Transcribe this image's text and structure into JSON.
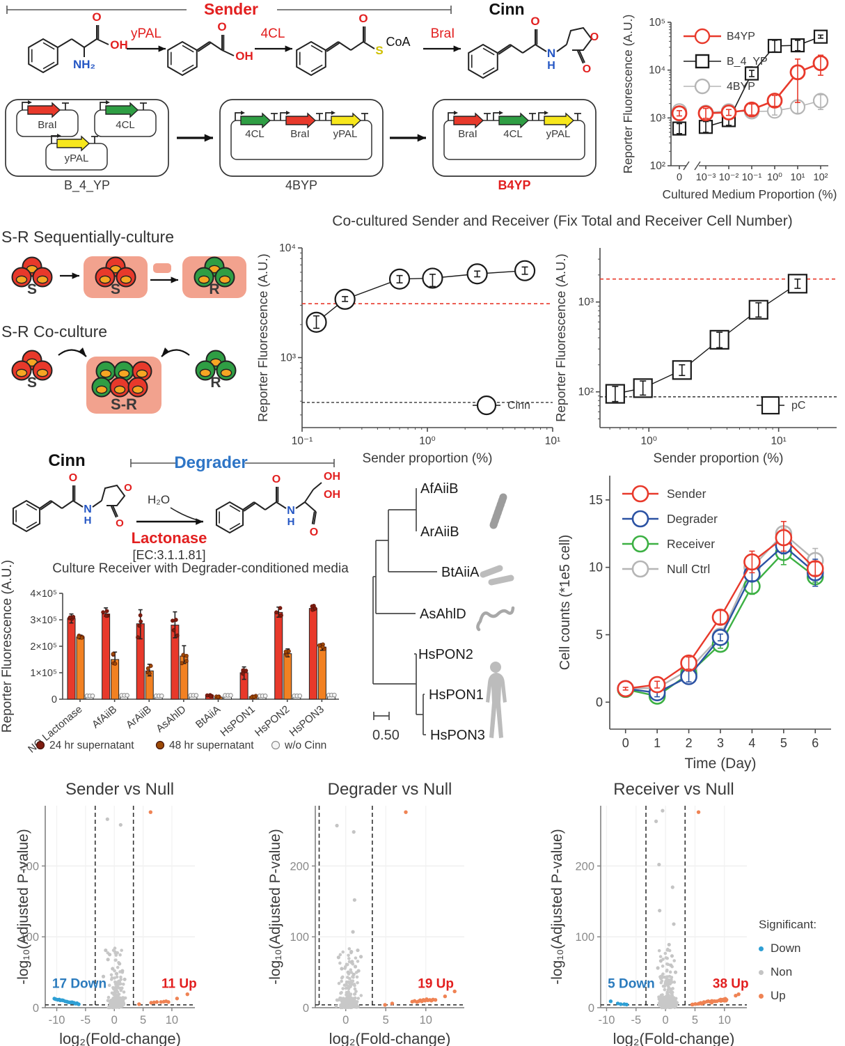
{
  "pathway": {
    "sender_label": "Sender",
    "cinn_label": "Cinn",
    "enzyme_labels": [
      "yPAL",
      "4CL",
      "BraI"
    ],
    "phe": {
      "o": "O",
      "oh": "OH",
      "nh2": "NH₂"
    },
    "ca": {
      "o": "O",
      "oh": "OH"
    },
    "coa": {
      "o": "O",
      "s": "S",
      "coa": "CoA"
    },
    "cinn_mol": {
      "o1": "O",
      "n": "N",
      "h": "H",
      "o_ring": "O",
      "o2": "O"
    }
  },
  "plasmids": {
    "cells": [
      {
        "label": "B_4_YP",
        "highlight": false,
        "layout": "separate",
        "genes": [
          "BraI",
          "4CL",
          "yPAL"
        ]
      },
      {
        "label": "4BYP",
        "highlight": false,
        "layout": "operon",
        "genes": [
          "4CL",
          "BraI",
          "yPAL"
        ]
      },
      {
        "label": "B4YP",
        "highlight": true,
        "layout": "operon",
        "genes": [
          "BraI",
          "4CL",
          "yPAL"
        ]
      }
    ],
    "gene_colors": {
      "BraI": "#e8392b",
      "4CL": "#2f9e44",
      "yPAL": "#f7e71c"
    },
    "highlight_color": "#e21f1f"
  },
  "coculture": {
    "title": "Co-cultured Sender and Receiver (Fix Total and Receiver Cell Number)",
    "seq_label": "S-R Sequentially-culture",
    "co_label": "S-R Co-culture",
    "s": "S",
    "r": "R",
    "sr": "S-R",
    "pink": "#f2a28e",
    "cell_red": "#e8392b",
    "cell_green": "#2f9e44",
    "yolk": "#f6a623"
  },
  "reaction": {
    "cinn": "Cinn",
    "degrader": "Degrader",
    "h2o": "H₂O",
    "enzyme": "Lactonase",
    "ec": "[EC:3.1.1.81]",
    "atoms": {
      "o": "O",
      "n": "N",
      "h": "H",
      "oh": "OH"
    },
    "degrader_color": "#2e75c6",
    "enzyme_color": "#e21f1f"
  },
  "volcano_legend": {
    "header": "Significant:",
    "items": [
      {
        "label": "Down",
        "color": "#2e9fd4"
      },
      {
        "label": "Non",
        "color": "#c4c4c4"
      },
      {
        "label": "Up",
        "color": "#ef8354"
      }
    ]
  },
  "chart_data": [
    {
      "id": "medium",
      "type": "line",
      "ylabel": "Reporter Fluorescence (A.U.)",
      "xlabel": "Cultured Medium Proportion (%)",
      "x_tick_labels": [
        "0",
        "10⁻³",
        "10⁻²",
        "10⁻¹",
        "10⁰",
        "10¹",
        "10²"
      ],
      "y_tick_labels": [
        "10²",
        "10³",
        "10⁴",
        "10⁵"
      ],
      "ylim": [
        100,
        100000
      ],
      "axis_break": true,
      "series": [
        {
          "name": "4BYP",
          "color": "#b5b5b5",
          "marker": "circle",
          "values": [
            1400,
            1300,
            1400,
            1350,
            1400,
            1700,
            2300
          ],
          "err_lo": [
            1200,
            1050,
            1200,
            1050,
            1150,
            1250,
            1500
          ],
          "err_hi": [
            1650,
            1600,
            1650,
            1750,
            1750,
            2300,
            3050
          ]
        },
        {
          "name": "B_4_YP",
          "color": "#1a1a1a",
          "marker": "square",
          "values": [
            600,
            650,
            900,
            8500,
            32000,
            33000,
            50000
          ],
          "err_lo": [
            470,
            500,
            700,
            7300,
            24000,
            25500,
            46500
          ],
          "err_hi": [
            760,
            840,
            1150,
            9900,
            42000,
            42000,
            54000
          ]
        },
        {
          "name": "B4YP",
          "color": "#e8392b",
          "marker": "circle",
          "values": [
            1250,
            1250,
            1300,
            1500,
            2300,
            9000,
            14000
          ],
          "err_lo": [
            1100,
            980,
            1130,
            1150,
            1750,
            2100,
            7800
          ],
          "err_hi": [
            1420,
            1580,
            1500,
            1950,
            2950,
            17000,
            20500
          ]
        }
      ],
      "legend_order": [
        "B4YP",
        "B_4_YP",
        "4BYP"
      ]
    },
    {
      "id": "cinn",
      "type": "line-loglog",
      "ylabel": "Reporter Fluorescence (A.U.)",
      "xlabel": "Sender proportion (%)",
      "x": [
        0.13,
        0.22,
        0.6,
        1.1,
        2.5,
        6
      ],
      "y": [
        2100,
        3400,
        5200,
        5300,
        5800,
        6200
      ],
      "err_lo": [
        1850,
        3250,
        4800,
        4450,
        5450,
        5750
      ],
      "err_hi": [
        2400,
        3600,
        5600,
        5750,
        6150,
        6700
      ],
      "xlim": [
        0.1,
        10
      ],
      "ylim": [
        230,
        10000
      ],
      "x_tick_labels": [
        "10⁻¹",
        "10⁰",
        "10¹"
      ],
      "x_tick_vals": [
        0.1,
        1,
        10
      ],
      "y_tick_labels": [
        "10³",
        "10⁴"
      ],
      "y_tick_vals": [
        1000,
        10000
      ],
      "hline_red": 3100,
      "hline_black": 390,
      "legend": "Cinn",
      "marker": "circle",
      "color": "#1a1a1a"
    },
    {
      "id": "pc",
      "type": "line-loglog",
      "ylabel": "Reporter Fluorescence (A.U.)",
      "xlabel": "Sender proportion (%)",
      "x": [
        0.55,
        0.9,
        1.8,
        3.5,
        7,
        14
      ],
      "y": [
        95,
        110,
        175,
        380,
        820,
        1600
      ],
      "err_lo": [
        78,
        92,
        152,
        310,
        680,
        1420
      ],
      "err_hi": [
        115,
        132,
        200,
        460,
        980,
        1800
      ],
      "xlim": [
        0.42,
        28
      ],
      "ylim": [
        40,
        4000
      ],
      "x_tick_labels": [
        "10⁰",
        "10¹"
      ],
      "x_tick_vals": [
        1,
        10
      ],
      "y_tick_labels": [
        "10²",
        "10³"
      ],
      "y_tick_vals": [
        100,
        1000
      ],
      "hline_red": 1800,
      "hline_black": 88,
      "legend": "pC",
      "marker": "square",
      "color": "#1a1a1a"
    },
    {
      "id": "bars",
      "type": "bar",
      "title": "Culture Receiver with Degrader-conditioned media",
      "ylabel": "Reporter Fluorescence (A.U.)",
      "categories": [
        "NO Lactonase",
        "AfAiiB",
        "ArAiiB",
        "AsAhlD",
        "BtAiiA",
        "HsPON1",
        "HsPON2",
        "HsPON3"
      ],
      "y_tick_labels": [
        "0",
        "1×10⁵",
        "2×10⁵",
        "3×10⁵",
        "4×10⁵"
      ],
      "ylim": [
        0,
        400000
      ],
      "series": [
        {
          "name": "24 hr supernatant",
          "color": "#e8392b",
          "dot_color": "#7e1c10",
          "values": [
            305000,
            322000,
            285000,
            280000,
            13000,
            100000,
            328000,
            343000
          ],
          "err_lo": [
            288000,
            314000,
            228000,
            232000,
            10000,
            75000,
            310000,
            335000
          ],
          "err_hi": [
            322000,
            345000,
            338000,
            330000,
            16000,
            122000,
            348000,
            355000
          ]
        },
        {
          "name": "48 hr supernatant",
          "color": "#f28122",
          "dot_color": "#9c4a05",
          "values": [
            235000,
            150000,
            107000,
            163000,
            8000,
            10000,
            172000,
            197000
          ],
          "err_lo": [
            228000,
            133000,
            88000,
            135000,
            6000,
            7000,
            160000,
            185000
          ],
          "err_hi": [
            242000,
            178000,
            132000,
            202000,
            10000,
            13000,
            190000,
            210000
          ]
        },
        {
          "name": "w/o Cinn",
          "color": "#f2f2f2",
          "dot_color": "#9a9a9a",
          "values": [
            10000,
            12000,
            10000,
            12000,
            12000,
            10000,
            10000,
            13000
          ],
          "err_lo": null,
          "err_hi": null
        }
      ]
    },
    {
      "id": "tree",
      "type": "tree",
      "taxa": [
        "AfAiiB",
        "ArAiiB",
        "BtAiiA",
        "AsAhlD",
        "HsPON2",
        "HsPON1",
        "HsPON3"
      ],
      "scale_label": "0.50",
      "icons": [
        "filamentous-bacterium",
        "rod-bacteria",
        "nematode",
        "human"
      ]
    },
    {
      "id": "growth",
      "type": "line",
      "ylabel": "Cell counts (*1e5 cell)",
      "xlabel": "Time (Day)",
      "x": [
        0,
        1,
        2,
        3,
        4,
        5,
        6
      ],
      "x_tick_labels": [
        "0",
        "1",
        "2",
        "3",
        "4",
        "5",
        "6"
      ],
      "y_tick_labels": [
        "0",
        "5",
        "10",
        "15"
      ],
      "y_tick_vals": [
        0,
        5,
        10,
        15
      ],
      "series": [
        {
          "name": "Null Ctrl",
          "color": "#b5b5b5",
          "values": [
            1.0,
            1.05,
            2.4,
            4.9,
            10.0,
            12.5,
            10.5
          ],
          "err_lo": [
            0.9,
            0.85,
            2.1,
            4.6,
            9.5,
            12.0,
            9.7
          ],
          "err_hi": [
            1.1,
            1.25,
            2.7,
            5.2,
            10.5,
            12.9,
            11.4
          ]
        },
        {
          "name": "Receiver",
          "color": "#3cb043",
          "values": [
            0.95,
            0.45,
            2.1,
            4.3,
            8.6,
            11.1,
            9.3
          ],
          "err_lo": [
            0.85,
            0.2,
            1.8,
            4.0,
            8.0,
            10.2,
            8.9
          ],
          "err_hi": [
            1.05,
            0.7,
            2.4,
            4.6,
            9.2,
            11.9,
            9.7
          ]
        },
        {
          "name": "Degrader",
          "color": "#2b52a3",
          "values": [
            1.0,
            0.7,
            1.9,
            4.8,
            9.5,
            11.6,
            9.6
          ],
          "err_lo": [
            0.9,
            0.4,
            1.5,
            4.55,
            9.0,
            11.0,
            8.6
          ],
          "err_hi": [
            1.1,
            1.0,
            2.3,
            5.05,
            10.0,
            12.2,
            10.6
          ]
        },
        {
          "name": "Sender",
          "color": "#e8392b",
          "values": [
            1.0,
            1.3,
            2.9,
            6.3,
            10.4,
            12.2,
            9.9
          ],
          "err_lo": [
            0.9,
            1.05,
            2.45,
            5.8,
            9.6,
            11.2,
            9.4
          ],
          "err_hi": [
            1.1,
            1.55,
            3.35,
            6.8,
            11.2,
            13.4,
            10.4
          ]
        }
      ],
      "legend_order": [
        "Sender",
        "Degrader",
        "Receiver",
        "Null Ctrl"
      ]
    },
    {
      "id": "volcano_sender",
      "type": "scatter",
      "title": "Sender vs Null",
      "ylabel": "-log₁₀(Adjusted P-value)",
      "xlabel": "log₂(Fold-change)",
      "y_ticks": [
        0,
        100,
        200
      ],
      "x_ticks": [
        -10,
        -5,
        0,
        5,
        10
      ],
      "xlim": [
        -12,
        14
      ],
      "ylim": [
        0,
        285
      ],
      "vline": 3.32,
      "hline": 4,
      "down_label": "17 Down",
      "up_label": "11 Up",
      "n_down": 17,
      "n_up": 11,
      "grey_n": 300,
      "seed": 7,
      "down_cluster": {
        "x0": -10.4,
        "x1": -6.2,
        "ytop": 12.5,
        "step": 0.45
      },
      "up_points": [
        [
          4.3,
          5
        ],
        [
          6.4,
          7
        ],
        [
          6.9,
          7.5
        ],
        [
          7.4,
          8
        ],
        [
          8.1,
          8
        ],
        [
          8.6,
          8.5
        ],
        [
          9.0,
          9
        ],
        [
          9.4,
          8
        ],
        [
          10.9,
          13
        ],
        [
          12.7,
          19
        ],
        [
          6.3,
          276
        ]
      ],
      "grey_outliers": [
        [
          -1.2,
          266
        ],
        [
          1.1,
          258
        ],
        [
          -1.5,
          81
        ],
        [
          -0.8,
          75
        ],
        [
          -1.1,
          68
        ],
        [
          0.9,
          62
        ],
        [
          -0.3,
          55
        ],
        [
          1.4,
          52
        ],
        [
          0.4,
          48
        ],
        [
          -1.9,
          44
        ],
        [
          1.8,
          40
        ]
      ]
    },
    {
      "id": "volcano_degrader",
      "type": "scatter",
      "title": "Degrader vs Null",
      "ylabel": "-log₁₀(Adjusted P-value)",
      "xlabel": "log₂(Fold-change)",
      "y_ticks": [
        0,
        100,
        200
      ],
      "x_ticks": [
        0,
        5,
        10
      ],
      "xlim": [
        -3.8,
        14.8
      ],
      "ylim": [
        0,
        285
      ],
      "vline": 3.32,
      "hline": 4,
      "up_label": "19 Up",
      "grey_n": 280,
      "seed": 11,
      "up_points": [
        [
          4.9,
          4
        ],
        [
          5.8,
          6
        ],
        [
          8.3,
          8.5
        ],
        [
          8.6,
          9.5
        ],
        [
          8.9,
          8
        ],
        [
          9.1,
          9
        ],
        [
          9.3,
          10.5
        ],
        [
          9.5,
          9
        ],
        [
          9.7,
          11
        ],
        [
          9.9,
          10
        ],
        [
          10.1,
          12
        ],
        [
          10.25,
          10.5
        ],
        [
          10.5,
          11
        ],
        [
          10.7,
          10
        ],
        [
          10.9,
          11.5
        ],
        [
          11.2,
          11
        ],
        [
          12.4,
          16
        ],
        [
          13.6,
          23
        ],
        [
          7.5,
          276
        ]
      ],
      "grey_outliers": [
        [
          -1.1,
          257
        ],
        [
          1.0,
          248
        ],
        [
          1.1,
          152
        ],
        [
          0.9,
          107
        ],
        [
          1.5,
          81
        ],
        [
          0.7,
          79
        ],
        [
          1.9,
          72
        ],
        [
          -0.9,
          71
        ],
        [
          0.8,
          65
        ],
        [
          1.2,
          58
        ],
        [
          -0.5,
          55
        ],
        [
          1.6,
          52
        ],
        [
          0.3,
          50
        ],
        [
          1.0,
          47
        ]
      ]
    },
    {
      "id": "volcano_receiver",
      "type": "scatter",
      "title": "Receiver vs Null",
      "ylabel": "-log₁₀(Adjusted P-value)",
      "xlabel": "log₂(Fold-change)",
      "y_ticks": [
        0,
        100,
        200
      ],
      "x_ticks": [
        -10,
        -5,
        0,
        5,
        10
      ],
      "xlim": [
        -11,
        13.8
      ],
      "ylim": [
        0,
        285
      ],
      "vline": 3.32,
      "hline": 4,
      "down_label": "5 Down",
      "up_label": "38 Up",
      "grey_n": 330,
      "seed": 13,
      "down_points": [
        [
          -9.3,
          9
        ],
        [
          -8.1,
          6
        ],
        [
          -7.6,
          5
        ],
        [
          -7.0,
          5
        ],
        [
          -6.6,
          4.5
        ]
      ],
      "up_cluster": {
        "n": 35,
        "x0": 4.2,
        "x1": 10.5
      },
      "up_points": [
        [
          11.9,
          17
        ],
        [
          12.4,
          19
        ],
        [
          5.6,
          276
        ]
      ],
      "grey_outliers": [
        [
          -0.5,
          278
        ],
        [
          -1.6,
          263
        ],
        [
          -1.1,
          202
        ],
        [
          1.2,
          170
        ],
        [
          -1.0,
          137
        ],
        [
          1.4,
          118
        ],
        [
          0.6,
          89
        ],
        [
          1.1,
          73
        ],
        [
          -0.8,
          66
        ],
        [
          0.9,
          60
        ],
        [
          -1.3,
          56
        ],
        [
          1.7,
          50
        ]
      ]
    }
  ]
}
